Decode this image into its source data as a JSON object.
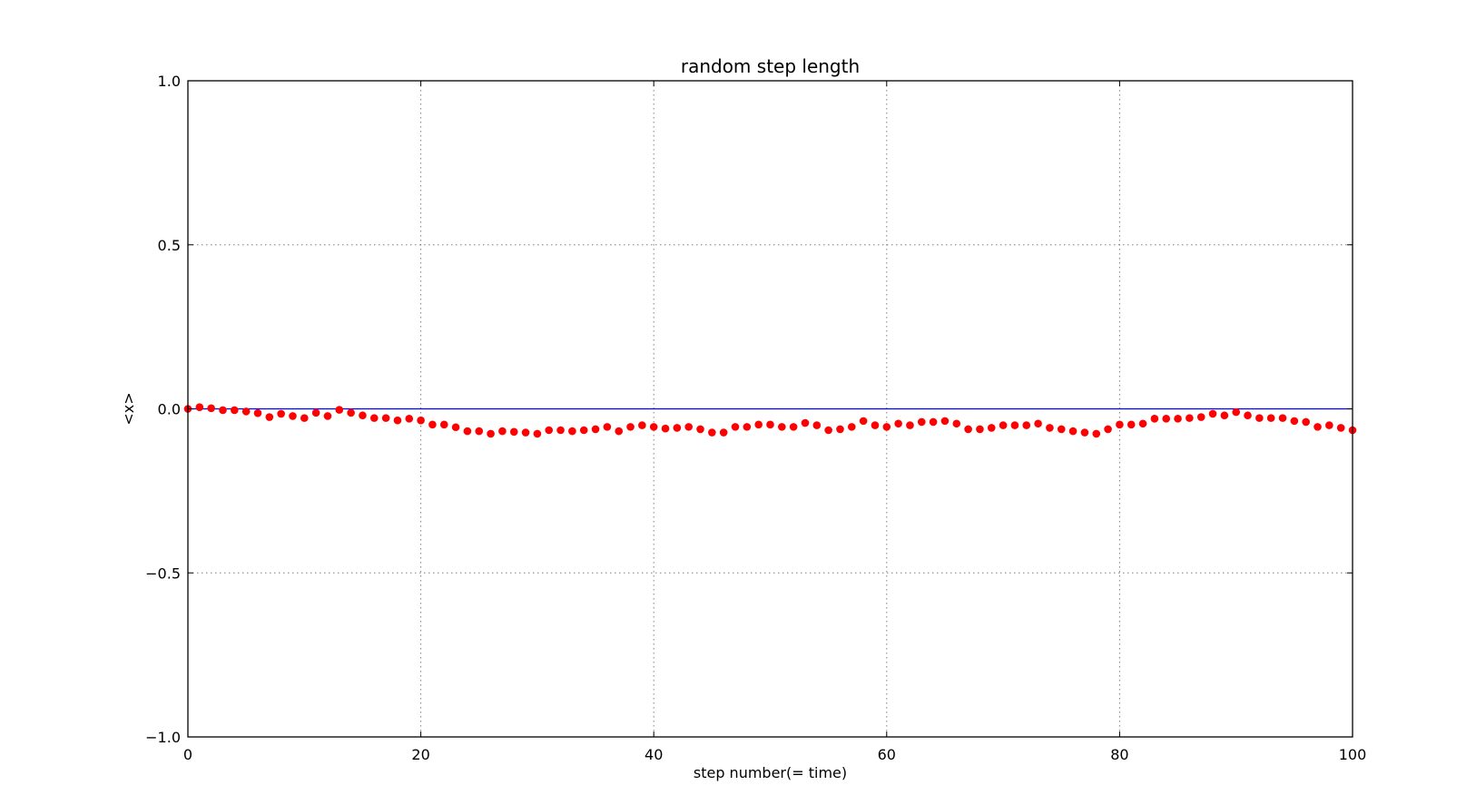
{
  "chart_data": {
    "type": "scatter",
    "title": "random step length",
    "xlabel": "step number(= time)",
    "ylabel": "<x>",
    "xlim": [
      0,
      100
    ],
    "ylim": [
      -1.0,
      1.0
    ],
    "x_ticks": [
      0,
      20,
      40,
      60,
      80,
      100
    ],
    "x_tick_labels": [
      "0",
      "20",
      "40",
      "60",
      "80",
      "100"
    ],
    "y_ticks": [
      -1.0,
      -0.5,
      0.0,
      0.5,
      1.0
    ],
    "y_tick_labels": [
      "−1.0",
      "−0.5",
      "0.0",
      "0.5",
      "1.0"
    ],
    "grid": true,
    "reference_line": {
      "y": 0.0,
      "color": "#0000ff"
    },
    "series": [
      {
        "marker": "circle",
        "color": "#ff0000",
        "x": [
          0,
          1,
          2,
          3,
          4,
          5,
          6,
          7,
          8,
          9,
          10,
          11,
          12,
          13,
          14,
          15,
          16,
          17,
          18,
          19,
          20,
          21,
          22,
          23,
          24,
          25,
          26,
          27,
          28,
          29,
          30,
          31,
          32,
          33,
          34,
          35,
          36,
          37,
          38,
          39,
          40,
          41,
          42,
          43,
          44,
          45,
          46,
          47,
          48,
          49,
          50,
          51,
          52,
          53,
          54,
          55,
          56,
          57,
          58,
          59,
          60,
          61,
          62,
          63,
          64,
          65,
          66,
          67,
          68,
          69,
          70,
          71,
          72,
          73,
          74,
          75,
          76,
          77,
          78,
          79,
          80,
          81,
          82,
          83,
          84,
          85,
          86,
          87,
          88,
          89,
          90,
          91,
          92,
          93,
          94,
          95,
          96,
          97,
          98,
          99,
          100
        ],
        "y": [
          0.0,
          0.005,
          0.002,
          -0.004,
          -0.004,
          -0.008,
          -0.013,
          -0.025,
          -0.015,
          -0.022,
          -0.028,
          -0.012,
          -0.022,
          -0.003,
          -0.012,
          -0.02,
          -0.028,
          -0.028,
          -0.035,
          -0.03,
          -0.035,
          -0.048,
          -0.048,
          -0.056,
          -0.068,
          -0.068,
          -0.076,
          -0.068,
          -0.07,
          -0.072,
          -0.076,
          -0.065,
          -0.065,
          -0.068,
          -0.065,
          -0.062,
          -0.055,
          -0.068,
          -0.055,
          -0.05,
          -0.055,
          -0.06,
          -0.058,
          -0.055,
          -0.062,
          -0.072,
          -0.072,
          -0.055,
          -0.055,
          -0.048,
          -0.048,
          -0.055,
          -0.055,
          -0.043,
          -0.05,
          -0.065,
          -0.062,
          -0.055,
          -0.037,
          -0.05,
          -0.055,
          -0.045,
          -0.05,
          -0.04,
          -0.04,
          -0.037,
          -0.045,
          -0.062,
          -0.062,
          -0.058,
          -0.05,
          -0.05,
          -0.05,
          -0.045,
          -0.058,
          -0.062,
          -0.068,
          -0.072,
          -0.076,
          -0.062,
          -0.048,
          -0.048,
          -0.045,
          -0.03,
          -0.03,
          -0.03,
          -0.028,
          -0.025,
          -0.015,
          -0.02,
          -0.01,
          -0.02,
          -0.028,
          -0.028,
          -0.028,
          -0.037,
          -0.04,
          -0.055,
          -0.05,
          -0.058,
          -0.065
        ]
      }
    ]
  }
}
